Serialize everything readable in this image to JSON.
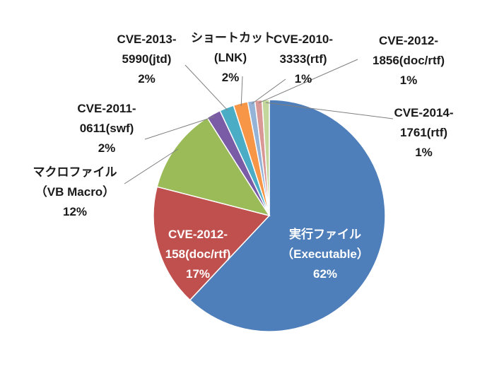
{
  "chart_data": {
    "type": "pie",
    "title": "",
    "slices": [
      {
        "label": [
          "実行ファイル",
          "（Executable）",
          "62%"
        ],
        "value": 62,
        "color": "#4f7fba"
      },
      {
        "label": [
          "CVE-2012-",
          "158(doc/rtf)",
          "17%"
        ],
        "value": 17,
        "color": "#c0504d"
      },
      {
        "label": [
          "マクロファイル",
          "（VB Macro）",
          "12%"
        ],
        "value": 12,
        "color": "#9bbb59"
      },
      {
        "label": [
          "CVE-2011-",
          "0611(swf)",
          "2%"
        ],
        "value": 2,
        "color": "#7a5ba6"
      },
      {
        "label": [
          "CVE-2013-",
          "5990(jtd)",
          "2%"
        ],
        "value": 2,
        "color": "#4bacc6"
      },
      {
        "label": [
          "ショートカット",
          "(LNK)",
          "2%"
        ],
        "value": 2,
        "color": "#f79646"
      },
      {
        "label": [
          "CVE-2010-",
          "3333(rtf)",
          "1%"
        ],
        "value": 1,
        "color": "#95b3d7"
      },
      {
        "label": [
          "CVE-2012-",
          "1856(doc/rtf)",
          "1%"
        ],
        "value": 1,
        "color": "#d99795"
      },
      {
        "label": [
          "CVE-2014-",
          "1761(rtf)",
          "1%"
        ],
        "value": 1,
        "color": "#c3d69b"
      }
    ]
  }
}
